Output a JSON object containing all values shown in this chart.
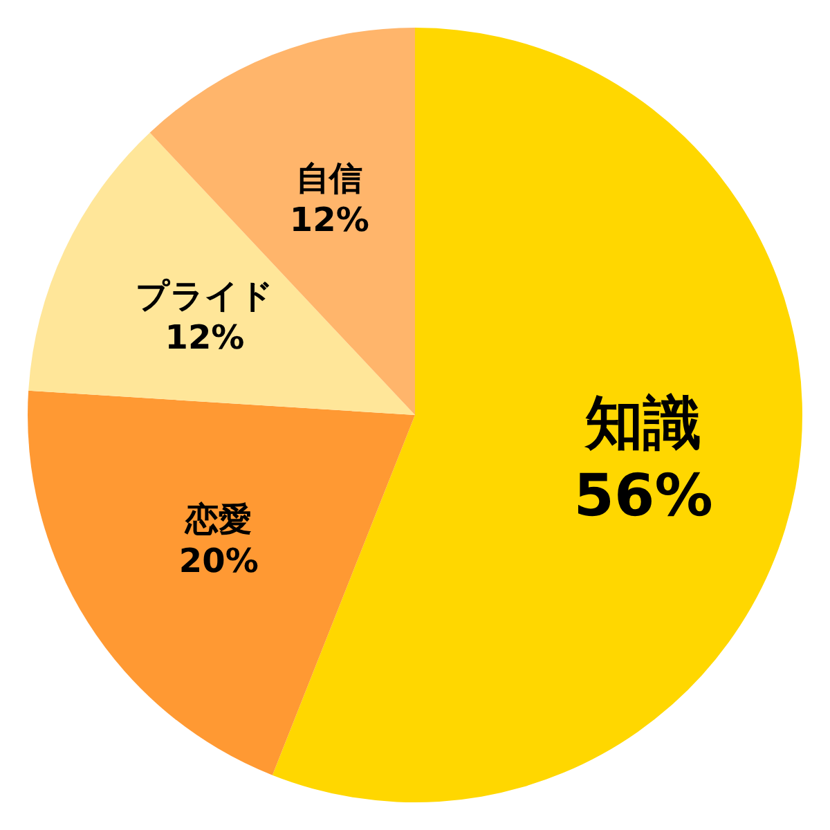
{
  "chart_data": {
    "type": "pie",
    "categories": [
      "知識",
      "恋愛",
      "プライド",
      "自信"
    ],
    "values": [
      56,
      20,
      12,
      12
    ],
    "colors": [
      "#ffd700",
      "#ff9933",
      "#ffe699",
      "#ffb56b"
    ],
    "value_labels": [
      "56%",
      "20%",
      "12%",
      "12%"
    ]
  }
}
